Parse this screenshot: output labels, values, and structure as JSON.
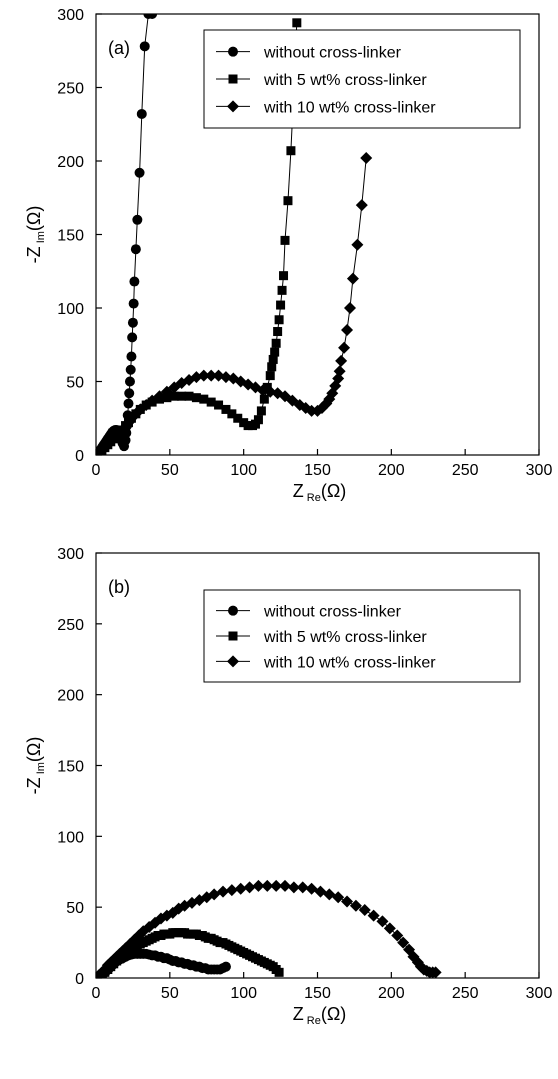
{
  "chart_data": [
    {
      "type": "scatter",
      "panel_label": "(a)",
      "xlabel_main": "Z",
      "xlabel_sub": "Re",
      "xlabel_unit": "(Ω)",
      "ylabel_main": "-Z",
      "ylabel_sub": "Im",
      "ylabel_unit": "(Ω)",
      "xlim": [
        0,
        300
      ],
      "ylim": [
        0,
        300
      ],
      "xticks": [
        "0",
        "50",
        "100",
        "150",
        "200",
        "250",
        "300"
      ],
      "yticks": [
        "0",
        "50",
        "100",
        "150",
        "200",
        "250",
        "300"
      ],
      "legend_position": "top-right",
      "series": [
        {
          "name": "without cross-linker",
          "marker": "circle",
          "x": [
            1,
            2,
            3,
            4,
            5,
            6,
            7,
            8,
            9,
            10,
            11,
            12,
            13,
            14,
            15,
            16,
            17,
            18,
            19,
            20,
            20.5,
            21,
            21.5,
            22,
            22.5,
            23,
            23.5,
            24,
            24.5,
            25,
            25.5,
            26,
            27,
            28,
            29.5,
            31,
            33,
            35.5,
            38
          ],
          "y": [
            1,
            2,
            3.5,
            5,
            6.5,
            8,
            9.5,
            11,
            12.5,
            14,
            15.5,
            16.5,
            17,
            17,
            16,
            14,
            12,
            8,
            6,
            10,
            15,
            20,
            27,
            35,
            42,
            50,
            58,
            67,
            80,
            90,
            103,
            118,
            140,
            160,
            192,
            232,
            278,
            300,
            300
          ]
        },
        {
          "name": "with 5 wt% cross-linker",
          "marker": "square",
          "x": [
            2,
            4,
            6,
            8,
            10,
            12,
            14,
            16,
            18,
            20,
            22,
            24,
            27,
            30,
            34,
            38,
            43,
            48,
            53,
            58,
            63,
            68,
            73,
            78,
            83,
            88,
            92,
            96,
            100,
            103,
            106,
            108,
            110,
            112,
            114,
            116,
            118,
            119,
            120,
            121,
            122,
            123,
            124,
            125,
            126,
            127,
            128,
            130,
            132,
            134,
            136
          ],
          "y": [
            1,
            3,
            5,
            7,
            9,
            11,
            13,
            15,
            17,
            20,
            22,
            25,
            28,
            31,
            34,
            36,
            38,
            39,
            40,
            40,
            40,
            39,
            38,
            36,
            34,
            31,
            28,
            25,
            22,
            20,
            20,
            21,
            24,
            30,
            38,
            46,
            54,
            60,
            65,
            70,
            76,
            84,
            92,
            102,
            112,
            122,
            146,
            173,
            207,
            250,
            294
          ]
        },
        {
          "name": "with 10 wt% cross-linker",
          "marker": "diamond",
          "x": [
            2,
            4,
            6,
            8,
            10,
            12,
            14,
            16,
            18,
            20,
            22,
            24,
            27,
            30,
            34,
            38,
            43,
            48,
            53,
            58,
            63,
            68,
            73,
            78,
            83,
            88,
            93,
            98,
            103,
            108,
            113,
            118,
            123,
            128,
            133,
            138,
            142,
            146,
            150,
            153,
            156,
            158,
            160,
            162,
            164,
            165,
            166,
            168,
            170,
            172,
            174,
            177,
            180,
            183
          ],
          "y": [
            1,
            3,
            5,
            7,
            9,
            11,
            13,
            15,
            17,
            19,
            22,
            25,
            28,
            31,
            34,
            37,
            40,
            43,
            46,
            49,
            51,
            53,
            54,
            54,
            54,
            53,
            52,
            50,
            48,
            46,
            44,
            43,
            42,
            40,
            37,
            34,
            32,
            30,
            30,
            32,
            35,
            38,
            42,
            47,
            52,
            57,
            64,
            73,
            85,
            100,
            120,
            143,
            170,
            202
          ]
        }
      ]
    },
    {
      "type": "scatter",
      "panel_label": "(b)",
      "xlabel_main": "Z",
      "xlabel_sub": "Re",
      "xlabel_unit": "(Ω)",
      "ylabel_main": "-Z",
      "ylabel_sub": "Im",
      "ylabel_unit": "(Ω)",
      "xlim": [
        0,
        300
      ],
      "ylim": [
        0,
        300
      ],
      "xticks": [
        "0",
        "50",
        "100",
        "150",
        "200",
        "250",
        "300"
      ],
      "yticks": [
        "0",
        "50",
        "100",
        "150",
        "200",
        "250",
        "300"
      ],
      "legend_position": "top-right",
      "series": [
        {
          "name": "without cross-linker",
          "marker": "circle",
          "x": [
            4,
            5,
            6,
            7,
            8,
            9,
            10,
            11,
            12,
            13,
            14,
            15,
            16,
            18,
            20,
            22,
            24,
            26,
            28,
            30,
            32,
            34,
            36,
            38,
            40,
            42,
            44,
            46,
            48,
            50,
            52,
            54,
            56,
            58,
            60,
            62,
            64,
            66,
            68,
            70,
            72,
            74,
            76,
            78,
            80,
            82,
            84,
            86,
            88
          ],
          "y": [
            2,
            3,
            4,
            5,
            6,
            7,
            8,
            9,
            10,
            11,
            12,
            12.5,
            13,
            14,
            15,
            16,
            16.5,
            17,
            17,
            17,
            17,
            17,
            16.5,
            16,
            16,
            15,
            15,
            14,
            14,
            13,
            12,
            12,
            11,
            11,
            10,
            10,
            9,
            9,
            8,
            8,
            7,
            7,
            6,
            6,
            6,
            6,
            6,
            7,
            8
          ]
        },
        {
          "name": "with 5 wt% cross-linker",
          "marker": "square",
          "x": [
            4,
            6,
            8,
            10,
            12,
            14,
            16,
            18,
            20,
            22,
            24,
            26,
            28,
            30,
            32,
            34,
            36,
            38,
            40,
            42,
            44,
            46,
            48,
            50,
            52,
            54,
            56,
            58,
            60,
            62,
            64,
            66,
            68,
            70,
            72,
            74,
            76,
            78,
            80,
            82,
            84,
            86,
            88,
            90,
            92,
            94,
            96,
            98,
            100,
            102,
            104,
            106,
            108,
            110,
            112,
            114,
            116,
            118,
            120,
            122,
            124
          ],
          "y": [
            2,
            4,
            6,
            8,
            10,
            12,
            13.5,
            15,
            17,
            18.5,
            20,
            21.5,
            23,
            24,
            25,
            26,
            27,
            28,
            29,
            30,
            30,
            31,
            31,
            31,
            32,
            32,
            32,
            32,
            32,
            31,
            31,
            31,
            31,
            30,
            30,
            29,
            28,
            28,
            27,
            26,
            25,
            25,
            24,
            23,
            22,
            21,
            20,
            19,
            18,
            17,
            16,
            15,
            14,
            13,
            12,
            11,
            10,
            9,
            8,
            6,
            4
          ]
        },
        {
          "name": "with 10 wt% cross-linker",
          "marker": "diamond",
          "x": [
            2,
            4,
            6,
            8,
            10,
            12,
            14,
            16,
            18,
            20,
            23,
            26,
            29,
            32,
            36,
            40,
            44,
            48,
            52,
            56,
            60,
            65,
            70,
            75,
            80,
            86,
            92,
            98,
            104,
            110,
            116,
            122,
            128,
            134,
            140,
            146,
            152,
            158,
            164,
            170,
            176,
            182,
            188,
            194,
            199,
            204,
            208,
            212,
            215,
            218,
            220,
            222,
            224,
            226,
            228,
            230
          ],
          "y": [
            2,
            4,
            6,
            9,
            11,
            13,
            15,
            17,
            19,
            21,
            24,
            27,
            30,
            33,
            36,
            39,
            42,
            44,
            46,
            49,
            51,
            53,
            55,
            57,
            59,
            61,
            62,
            63,
            64,
            65,
            65,
            65,
            65,
            64,
            64,
            63,
            61,
            59,
            57,
            54,
            51,
            48,
            44,
            40,
            35,
            30,
            25,
            20,
            15,
            11,
            8,
            6,
            5,
            4,
            4,
            4
          ]
        }
      ]
    }
  ]
}
